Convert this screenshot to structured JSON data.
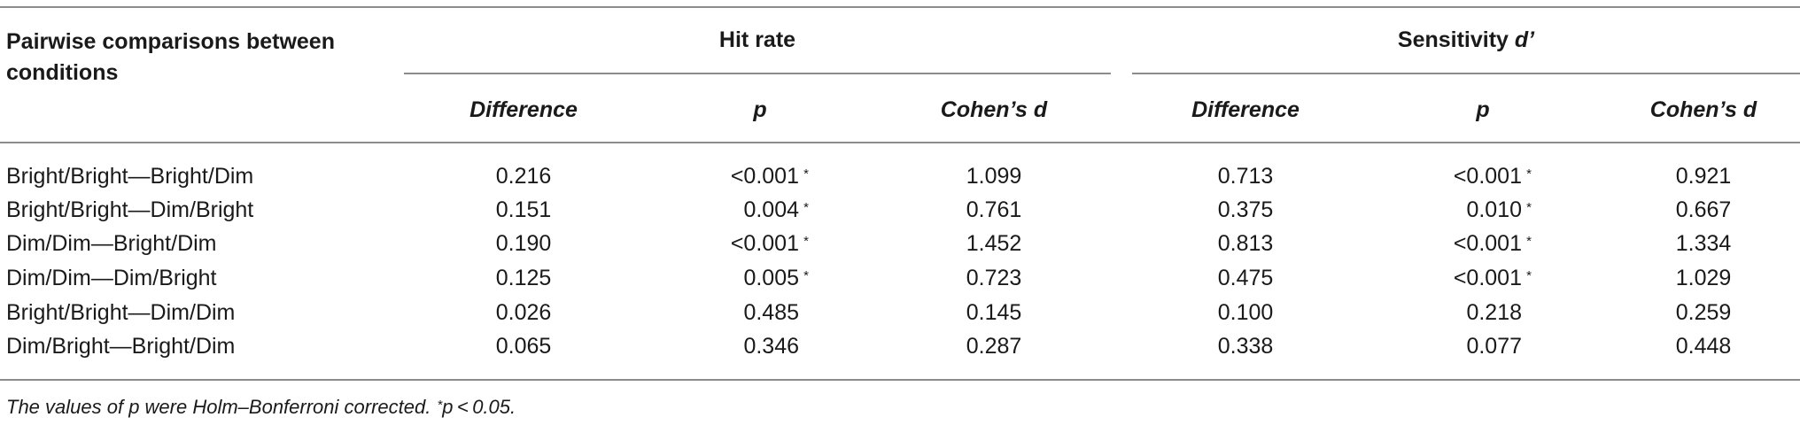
{
  "table": {
    "row_header": "Pairwise comparisons between conditions",
    "row_header_line1": "Pairwise comparisons between",
    "row_header_line2": "conditions",
    "group_hit_rate": "Hit rate",
    "group_sensitivity_prefix": "Sensitivity ",
    "group_sensitivity_symbol": "d’",
    "sub_headers": [
      "Difference",
      "p",
      "Cohen’s d",
      "Difference",
      "p",
      "Cohen’s d"
    ],
    "rows": [
      {
        "label": "Bright/Bright—Bright/Dim",
        "hr_diff": "0.216",
        "hr_p": "<0.001",
        "hr_sig": "*",
        "hr_d": "1.099",
        "s_diff": "0.713",
        "s_p": "<0.001",
        "s_sig": "*",
        "s_d": "0.921"
      },
      {
        "label": "Bright/Bright—Dim/Bright",
        "hr_diff": "0.151",
        "hr_p": "0.004",
        "hr_sig": "*",
        "hr_d": "0.761",
        "s_diff": "0.375",
        "s_p": "0.010",
        "s_sig": "*",
        "s_d": "0.667"
      },
      {
        "label": "Dim/Dim—Bright/Dim",
        "hr_diff": "0.190",
        "hr_p": "<0.001",
        "hr_sig": "*",
        "hr_d": "1.452",
        "s_diff": "0.813",
        "s_p": "<0.001",
        "s_sig": "*",
        "s_d": "1.334"
      },
      {
        "label": "Dim/Dim—Dim/Bright",
        "hr_diff": "0.125",
        "hr_p": "0.005",
        "hr_sig": "*",
        "hr_d": "0.723",
        "s_diff": "0.475",
        "s_p": "<0.001",
        "s_sig": "*",
        "s_d": "1.029"
      },
      {
        "label": "Bright/Bright—Dim/Dim",
        "hr_diff": "0.026",
        "hr_p": "0.485",
        "hr_sig": "",
        "hr_d": "0.145",
        "s_diff": "0.100",
        "s_p": "0.218",
        "s_sig": "",
        "s_d": "0.259"
      },
      {
        "label": "Dim/Bright—Bright/Dim",
        "hr_diff": "0.065",
        "hr_p": "0.346",
        "hr_sig": "",
        "hr_d": "0.287",
        "s_diff": "0.338",
        "s_p": "0.077",
        "s_sig": "",
        "s_d": "0.448"
      }
    ],
    "footnote_main": "The values of p were Holm–Bonferroni corrected. ",
    "footnote_sig": "*",
    "footnote_end": "p < 0.05."
  }
}
